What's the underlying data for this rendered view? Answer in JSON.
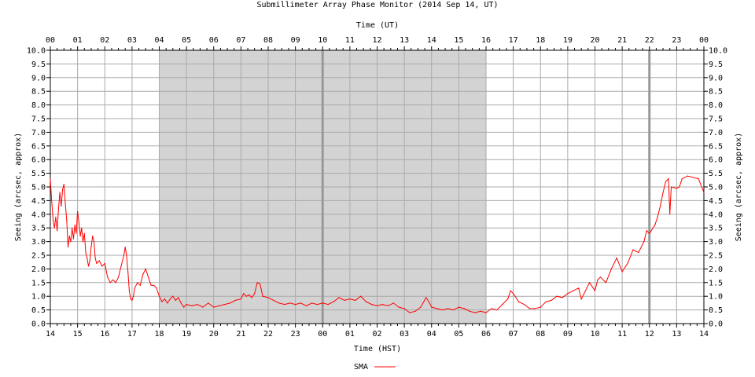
{
  "chart_data": {
    "type": "line",
    "title": "Submillimeter Array Phase Monitor (2014 Sep 14, UT)",
    "xlabel_top": "Time (UT)",
    "xlabel_bottom": "Time (HST)",
    "ylabel_left": "Seeing (arcsec, approx)",
    "ylabel_right": "Seeing (arcsec, approx)",
    "ylim": [
      0,
      10
    ],
    "y_ticks": [
      "0.0",
      "0.5",
      "1.0",
      "1.5",
      "2.0",
      "2.5",
      "3.0",
      "3.5",
      "4.0",
      "4.5",
      "5.0",
      "5.5",
      "6.0",
      "6.5",
      "7.0",
      "7.5",
      "8.0",
      "8.5",
      "9.0",
      "9.5",
      "10.0"
    ],
    "x_range_hours": [
      0,
      24
    ],
    "x_ticks_ut": [
      "00",
      "01",
      "02",
      "03",
      "04",
      "05",
      "06",
      "07",
      "08",
      "09",
      "10",
      "11",
      "12",
      "13",
      "14",
      "15",
      "16",
      "17",
      "18",
      "19",
      "20",
      "21",
      "22",
      "23",
      "00"
    ],
    "x_ticks_hst": [
      "14",
      "15",
      "16",
      "17",
      "18",
      "19",
      "20",
      "21",
      "22",
      "23",
      "00",
      "01",
      "02",
      "03",
      "04",
      "05",
      "06",
      "07",
      "08",
      "09",
      "10",
      "11",
      "12",
      "13",
      "14"
    ],
    "night_shading_ut": [
      4,
      16
    ],
    "thick_lines_ut": [
      10,
      22
    ],
    "grid": true,
    "legend": {
      "position": "bottom",
      "entries": [
        {
          "name": "SMA",
          "color": "#ff0000"
        }
      ]
    },
    "colors": {
      "series": "#ff0000",
      "shade": "#d3d3d3",
      "grid": "#aaaaaa",
      "thick": "#999999"
    },
    "series": [
      {
        "name": "SMA",
        "points": [
          [
            0.0,
            5.3
          ],
          [
            0.05,
            4.5
          ],
          [
            0.1,
            3.8
          ],
          [
            0.15,
            3.5
          ],
          [
            0.2,
            3.9
          ],
          [
            0.25,
            3.4
          ],
          [
            0.3,
            4.2
          ],
          [
            0.35,
            4.8
          ],
          [
            0.4,
            4.3
          ],
          [
            0.45,
            4.9
          ],
          [
            0.5,
            5.1
          ],
          [
            0.55,
            4.4
          ],
          [
            0.6,
            3.8
          ],
          [
            0.65,
            2.8
          ],
          [
            0.7,
            3.2
          ],
          [
            0.75,
            3.0
          ],
          [
            0.8,
            3.5
          ],
          [
            0.85,
            3.1
          ],
          [
            0.9,
            3.6
          ],
          [
            0.95,
            3.3
          ],
          [
            1.0,
            4.1
          ],
          [
            1.05,
            3.7
          ],
          [
            1.1,
            3.2
          ],
          [
            1.15,
            3.5
          ],
          [
            1.2,
            3.0
          ],
          [
            1.25,
            3.3
          ],
          [
            1.3,
            2.6
          ],
          [
            1.35,
            2.4
          ],
          [
            1.4,
            2.1
          ],
          [
            1.45,
            2.3
          ],
          [
            1.5,
            2.8
          ],
          [
            1.55,
            3.2
          ],
          [
            1.6,
            3.0
          ],
          [
            1.65,
            2.4
          ],
          [
            1.7,
            2.2
          ],
          [
            1.8,
            2.3
          ],
          [
            1.9,
            2.1
          ],
          [
            2.0,
            2.2
          ],
          [
            2.1,
            1.7
          ],
          [
            2.2,
            1.5
          ],
          [
            2.3,
            1.6
          ],
          [
            2.4,
            1.5
          ],
          [
            2.5,
            1.7
          ],
          [
            2.6,
            2.1
          ],
          [
            2.7,
            2.5
          ],
          [
            2.75,
            2.8
          ],
          [
            2.8,
            2.5
          ],
          [
            2.85,
            1.9
          ],
          [
            2.9,
            1.2
          ],
          [
            2.95,
            0.9
          ],
          [
            3.0,
            0.85
          ],
          [
            3.05,
            1.0
          ],
          [
            3.1,
            1.3
          ],
          [
            3.2,
            1.5
          ],
          [
            3.3,
            1.4
          ],
          [
            3.4,
            1.8
          ],
          [
            3.5,
            2.0
          ],
          [
            3.6,
            1.7
          ],
          [
            3.7,
            1.4
          ],
          [
            3.8,
            1.4
          ],
          [
            3.9,
            1.3
          ],
          [
            4.0,
            1.0
          ],
          [
            4.1,
            0.8
          ],
          [
            4.2,
            0.9
          ],
          [
            4.3,
            0.75
          ],
          [
            4.4,
            0.9
          ],
          [
            4.5,
            1.0
          ],
          [
            4.6,
            0.85
          ],
          [
            4.7,
            0.95
          ],
          [
            4.8,
            0.75
          ],
          [
            4.9,
            0.6
          ],
          [
            5.0,
            0.7
          ],
          [
            5.2,
            0.65
          ],
          [
            5.4,
            0.7
          ],
          [
            5.6,
            0.6
          ],
          [
            5.8,
            0.75
          ],
          [
            6.0,
            0.6
          ],
          [
            6.2,
            0.65
          ],
          [
            6.4,
            0.7
          ],
          [
            6.6,
            0.75
          ],
          [
            6.8,
            0.85
          ],
          [
            7.0,
            0.9
          ],
          [
            7.1,
            1.1
          ],
          [
            7.2,
            1.0
          ],
          [
            7.3,
            1.05
          ],
          [
            7.4,
            0.95
          ],
          [
            7.5,
            1.1
          ],
          [
            7.6,
            1.5
          ],
          [
            7.7,
            1.45
          ],
          [
            7.8,
            1.0
          ],
          [
            8.0,
            0.95
          ],
          [
            8.2,
            0.85
          ],
          [
            8.4,
            0.75
          ],
          [
            8.6,
            0.7
          ],
          [
            8.8,
            0.75
          ],
          [
            9.0,
            0.7
          ],
          [
            9.2,
            0.75
          ],
          [
            9.4,
            0.65
          ],
          [
            9.6,
            0.75
          ],
          [
            9.8,
            0.7
          ],
          [
            10.0,
            0.75
          ],
          [
            10.2,
            0.7
          ],
          [
            10.4,
            0.8
          ],
          [
            10.6,
            0.95
          ],
          [
            10.8,
            0.85
          ],
          [
            11.0,
            0.9
          ],
          [
            11.2,
            0.85
          ],
          [
            11.4,
            1.0
          ],
          [
            11.6,
            0.8
          ],
          [
            11.8,
            0.7
          ],
          [
            12.0,
            0.65
          ],
          [
            12.2,
            0.7
          ],
          [
            12.4,
            0.65
          ],
          [
            12.6,
            0.75
          ],
          [
            12.8,
            0.6
          ],
          [
            13.0,
            0.55
          ],
          [
            13.2,
            0.4
          ],
          [
            13.4,
            0.45
          ],
          [
            13.6,
            0.6
          ],
          [
            13.8,
            0.95
          ],
          [
            13.9,
            0.8
          ],
          [
            14.0,
            0.6
          ],
          [
            14.2,
            0.55
          ],
          [
            14.4,
            0.5
          ],
          [
            14.6,
            0.55
          ],
          [
            14.8,
            0.5
          ],
          [
            15.0,
            0.6
          ],
          [
            15.2,
            0.55
          ],
          [
            15.4,
            0.45
          ],
          [
            15.6,
            0.4
          ],
          [
            15.8,
            0.45
          ],
          [
            16.0,
            0.4
          ],
          [
            16.2,
            0.55
          ],
          [
            16.4,
            0.5
          ],
          [
            16.6,
            0.7
          ],
          [
            16.8,
            0.9
          ],
          [
            16.9,
            1.2
          ],
          [
            17.0,
            1.1
          ],
          [
            17.2,
            0.8
          ],
          [
            17.4,
            0.7
          ],
          [
            17.6,
            0.55
          ],
          [
            17.8,
            0.55
          ],
          [
            18.0,
            0.6
          ],
          [
            18.2,
            0.8
          ],
          [
            18.4,
            0.85
          ],
          [
            18.6,
            1.0
          ],
          [
            18.8,
            0.95
          ],
          [
            19.0,
            1.1
          ],
          [
            19.2,
            1.2
          ],
          [
            19.4,
            1.3
          ],
          [
            19.5,
            0.9
          ],
          [
            19.6,
            1.1
          ],
          [
            19.8,
            1.5
          ],
          [
            20.0,
            1.2
          ],
          [
            20.1,
            1.6
          ],
          [
            20.2,
            1.7
          ],
          [
            20.4,
            1.5
          ],
          [
            20.6,
            2.0
          ],
          [
            20.8,
            2.4
          ],
          [
            21.0,
            1.9
          ],
          [
            21.2,
            2.2
          ],
          [
            21.4,
            2.7
          ],
          [
            21.6,
            2.6
          ],
          [
            21.8,
            3.0
          ],
          [
            21.9,
            3.4
          ],
          [
            22.0,
            3.3
          ],
          [
            22.2,
            3.6
          ],
          [
            22.3,
            3.9
          ],
          [
            22.4,
            4.3
          ],
          [
            22.5,
            4.8
          ],
          [
            22.6,
            5.2
          ],
          [
            22.7,
            5.3
          ],
          [
            22.75,
            4.0
          ],
          [
            22.8,
            5.0
          ],
          [
            23.0,
            4.95
          ],
          [
            23.1,
            5.0
          ],
          [
            23.2,
            5.3
          ],
          [
            23.4,
            5.4
          ],
          [
            23.6,
            5.35
          ],
          [
            23.8,
            5.3
          ],
          [
            24.0,
            4.8
          ]
        ]
      }
    ]
  }
}
